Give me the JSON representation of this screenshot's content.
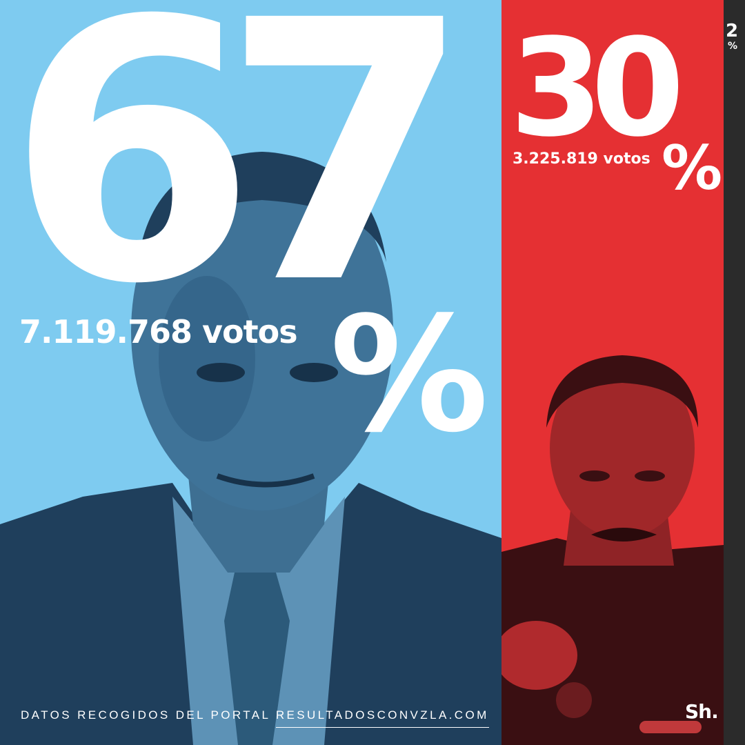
{
  "colors": {
    "candidate_1": "#7ecbf0",
    "candidate_2": "#e53033",
    "others": "#2b2b2b",
    "text": "#ffffff"
  },
  "results": [
    {
      "percent_number": "67",
      "percent_sign": "%",
      "votes": "7.119.768 votos",
      "share": 0.67
    },
    {
      "percent_number": "30",
      "percent_sign": "%",
      "votes": "3.225.819 votos",
      "share": 0.3
    },
    {
      "percent_number": "2",
      "percent_sign": "%",
      "share": 0.02
    }
  ],
  "footer": {
    "source_prefix": "DATOS RECOGIDOS DEL PORTAL",
    "source_site": "RESULTADOSCONVZLA.COM",
    "logo": "Sh."
  }
}
